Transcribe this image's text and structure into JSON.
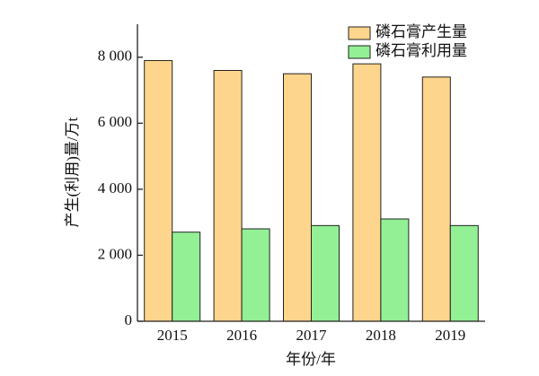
{
  "chart_data": {
    "type": "bar",
    "x_label": "年份/年",
    "y_label": "产生(利用)量/万t",
    "categories": [
      "2015",
      "2016",
      "2017",
      "2018",
      "2019"
    ],
    "series": [
      {
        "name": "磷石膏产生量",
        "color": "#fed58c",
        "values": [
          7900,
          7600,
          7500,
          7800,
          7400
        ]
      },
      {
        "name": "磷石膏利用量",
        "color": "#93f095",
        "values": [
          2700,
          2800,
          2900,
          3100,
          2900
        ]
      }
    ],
    "ylim": [
      0,
      9000
    ],
    "yticks": [
      0,
      {
        "value": 2000,
        "label": "2 000"
      },
      {
        "value": 4000,
        "label": "4 000"
      },
      {
        "value": 6000,
        "label": "6 000"
      },
      {
        "value": 8000,
        "label": "8 000"
      }
    ],
    "grid": false,
    "legend": "top-right"
  }
}
